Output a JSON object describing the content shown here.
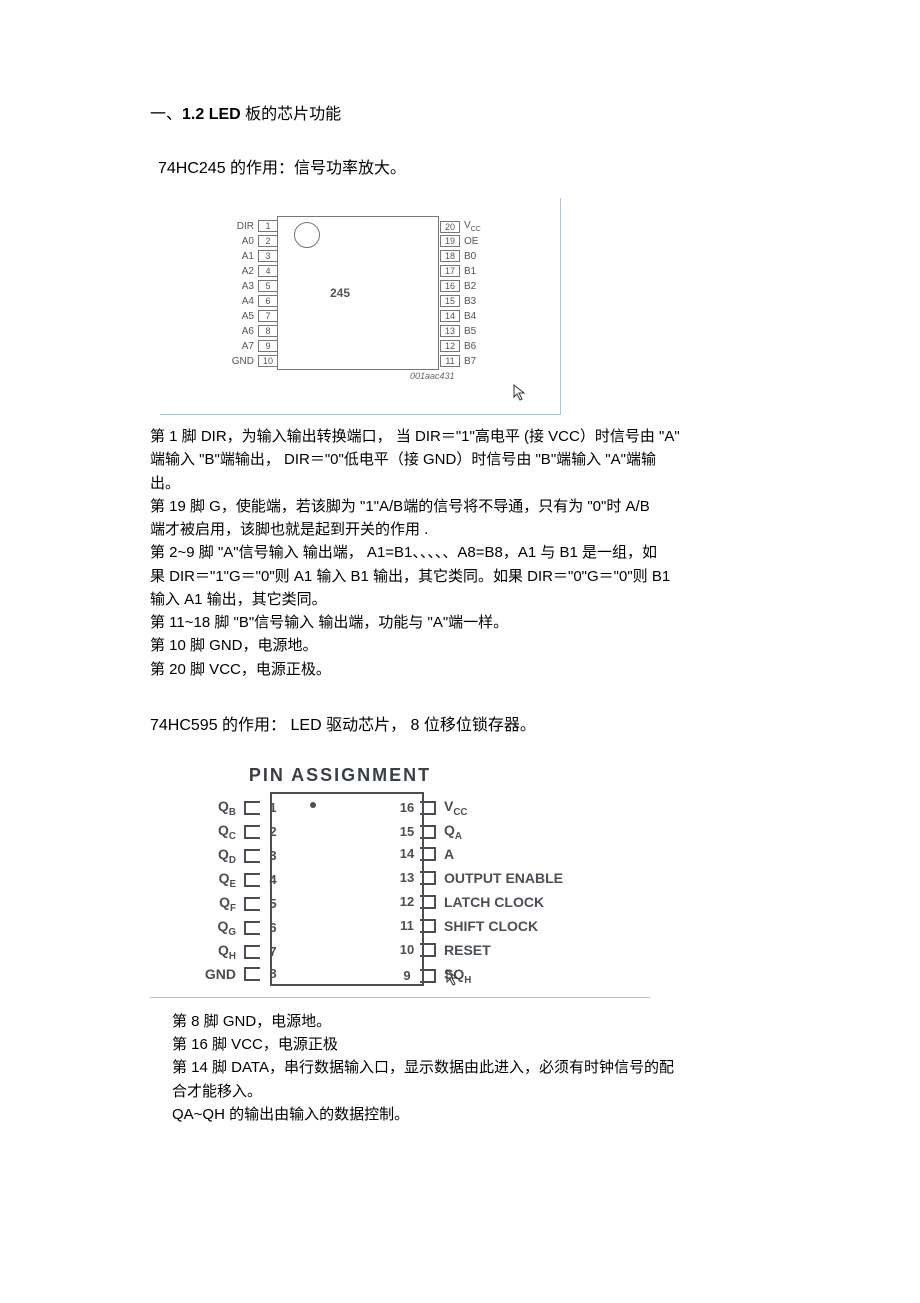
{
  "section": {
    "title_prefix": "一、",
    "title_bold": "1.2 LED",
    "title_suffix": " 板的芯片功能"
  },
  "hc245": {
    "intro": "74HC245 的作用：信号功率放大。",
    "chip_center_label": "245",
    "chip_id": "001aac431",
    "left_pins": [
      {
        "label": "DIR",
        "num": "1"
      },
      {
        "label": "A0",
        "num": "2"
      },
      {
        "label": "A1",
        "num": "3"
      },
      {
        "label": "A2",
        "num": "4"
      },
      {
        "label": "A3",
        "num": "5"
      },
      {
        "label": "A4",
        "num": "6"
      },
      {
        "label": "A5",
        "num": "7"
      },
      {
        "label": "A6",
        "num": "8"
      },
      {
        "label": "A7",
        "num": "9"
      },
      {
        "label": "GND",
        "num": "10"
      }
    ],
    "right_pins": [
      {
        "num": "20",
        "label": "V",
        "sub": "CC"
      },
      {
        "num": "19",
        "label": "OE",
        "sub": ""
      },
      {
        "num": "18",
        "label": "B0",
        "sub": ""
      },
      {
        "num": "17",
        "label": "B1",
        "sub": ""
      },
      {
        "num": "16",
        "label": "B2",
        "sub": ""
      },
      {
        "num": "15",
        "label": "B3",
        "sub": ""
      },
      {
        "num": "14",
        "label": "B4",
        "sub": ""
      },
      {
        "num": "13",
        "label": "B5",
        "sub": ""
      },
      {
        "num": "12",
        "label": "B6",
        "sub": ""
      },
      {
        "num": "11",
        "label": "B7",
        "sub": ""
      }
    ],
    "desc": [
      "第 1 脚 DIR，为输入输出转换端口， 当 DIR＝\"1\"高电平 (接 VCC）时信号由 \"A\"",
      "端输入 \"B\"端输出， DIR＝\"0\"低电平（接  GND）时信号由 \"B\"端输入 \"A\"端输",
      "出。",
      "第 19 脚 G，使能端，若该脚为 \"1\"A/B端的信号将不导通，只有为  \"0\"时 A/B",
      "端才被启用，该脚也就是起到开关的作用   .",
      "第 2~9 脚 \"A\"信号输入 输出端， A1=B1、、、、、A8=B8，A1 与 B1 是一组，如",
      "果 DIR＝\"1\"G＝\"0\"则 A1 输入 B1 输出，其它类同。如果  DIR＝\"0\"G＝\"0\"则 B1",
      "输入 A1 输出，其它类同。",
      "第 11~18 脚 \"B\"信号输入 输出端，功能与 \"A\"端一样。",
      "第 10 脚 GND，电源地。",
      "第 20 脚 VCC，电源正极。"
    ]
  },
  "hc595": {
    "intro": "74HC595 的作用： LED 驱动芯片， 8 位移位锁存器。",
    "header": "PIN ASSIGNMENT",
    "left_pins": [
      {
        "label": "Q",
        "sub": "B",
        "num": "1"
      },
      {
        "label": "Q",
        "sub": "C",
        "num": "2"
      },
      {
        "label": "Q",
        "sub": "D",
        "num": "3"
      },
      {
        "label": "Q",
        "sub": "E",
        "num": "4"
      },
      {
        "label": "Q",
        "sub": "F",
        "num": "5"
      },
      {
        "label": "Q",
        "sub": "G",
        "num": "6"
      },
      {
        "label": "Q",
        "sub": "H",
        "num": "7"
      },
      {
        "label": "GND",
        "sub": "",
        "num": "8"
      }
    ],
    "right_pins": [
      {
        "num": "16",
        "label": "V",
        "sub": "CC"
      },
      {
        "num": "15",
        "label": "Q",
        "sub": "A"
      },
      {
        "num": "14",
        "label": "A",
        "sub": ""
      },
      {
        "num": "13",
        "label": "OUTPUT ENABLE",
        "sub": ""
      },
      {
        "num": "12",
        "label": "LATCH CLOCK",
        "sub": ""
      },
      {
        "num": "11",
        "label": "SHIFT CLOCK",
        "sub": ""
      },
      {
        "num": "10",
        "label": "RESET",
        "sub": ""
      },
      {
        "num": "9",
        "label": "SQ",
        "sub": "H"
      }
    ],
    "desc": [
      "第 8 脚 GND，电源地。",
      "第 16 脚 VCC，电源正极",
      "第 14 脚 DATA，串行数据输入口，显示数据由此进入，必须有时钟信号的配",
      "合才能移入。",
      "QA~QH 的输出由输入的数据控制。"
    ]
  },
  "cursor_glyph": "↖"
}
